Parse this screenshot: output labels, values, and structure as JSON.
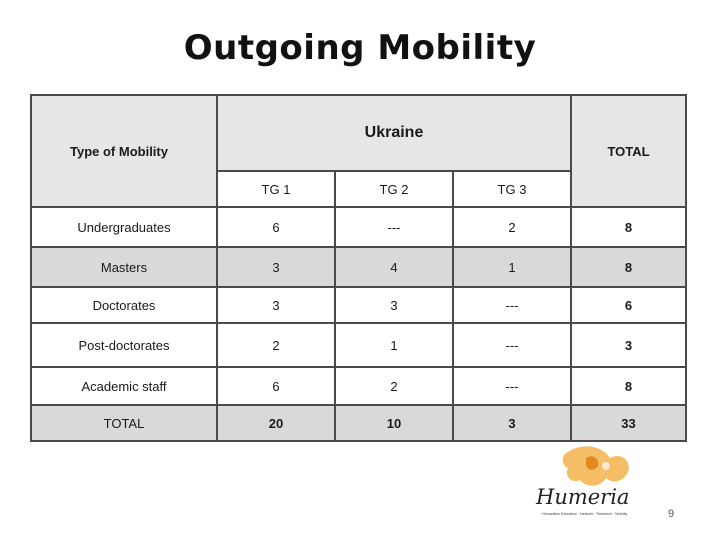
{
  "title": "Outgoing Mobility",
  "header": {
    "type_label": "Type of Mobility",
    "country": "Ukraine",
    "total_label": "TOTAL",
    "groups": [
      "TG 1",
      "TG 2",
      "TG 3"
    ]
  },
  "rows": [
    {
      "label": "Undergraduates",
      "values": [
        "6",
        "---",
        "2"
      ],
      "total": "8"
    },
    {
      "label": "Masters",
      "values": [
        "3",
        "4",
        "1"
      ],
      "total": "8"
    },
    {
      "label": "Doctorates",
      "values": [
        "3",
        "3",
        "---"
      ],
      "total": "6"
    },
    {
      "label": "Post-doctorates",
      "values": [
        "2",
        "1",
        "---"
      ],
      "total": "3"
    },
    {
      "label": "Academic staff",
      "values": [
        "6",
        "2",
        "---"
      ],
      "total": "8"
    },
    {
      "label": "TOTAL",
      "values": [
        "20",
        "10",
        "3"
      ],
      "total": "33"
    }
  ],
  "logo": {
    "text": "Humeria",
    "tagline": "Humanities Education · Network · Research · Mobility"
  },
  "page_number": "9",
  "colors": {
    "gray_row": "#d9d9d9",
    "border": "#4a4a4a",
    "logo_orange": "#f0a030",
    "logo_ink": "#222222"
  }
}
